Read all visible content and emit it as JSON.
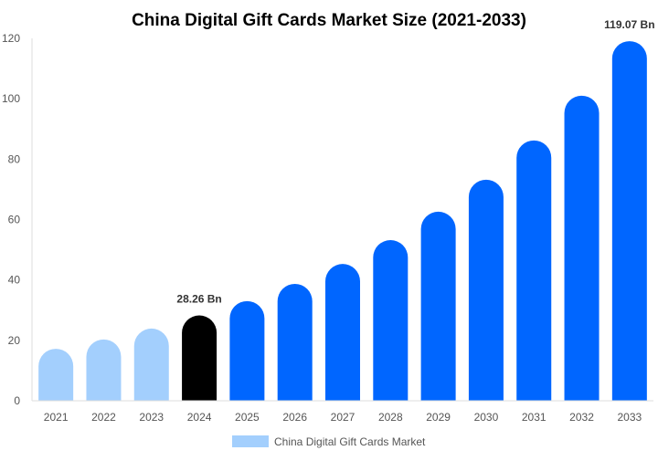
{
  "chart_data": {
    "type": "bar",
    "title": "China Digital Gift Cards Market Size (2021-2033)",
    "xlabel": "",
    "ylabel": "",
    "ylim": [
      0,
      120
    ],
    "yticks": [
      0,
      20,
      40,
      60,
      80,
      100,
      120
    ],
    "grid": false,
    "legend_position": "bottom",
    "categories": [
      "2021",
      "2022",
      "2023",
      "2024",
      "2025",
      "2026",
      "2027",
      "2028",
      "2029",
      "2030",
      "2031",
      "2032",
      "2033"
    ],
    "series": [
      {
        "name": "China Digital Gift Cards Market",
        "values": [
          17.2,
          20.3,
          23.9,
          28.26,
          33.0,
          38.7,
          45.3,
          53.2,
          62.6,
          73.2,
          86.2,
          101.0,
          119.07
        ]
      }
    ],
    "data_labels": [
      {
        "category": "2024",
        "text": "28.26 Bn"
      },
      {
        "category": "2033",
        "text": "119.07 Bn"
      }
    ],
    "colors": {
      "historical": "#a3cffd",
      "base_year": "#000000",
      "forecast": "#0066ff",
      "legend_swatch": "#a3cffd"
    },
    "bar_color_groups": [
      "historical",
      "historical",
      "historical",
      "base_year",
      "forecast",
      "forecast",
      "forecast",
      "forecast",
      "forecast",
      "forecast",
      "forecast",
      "forecast",
      "forecast"
    ]
  }
}
